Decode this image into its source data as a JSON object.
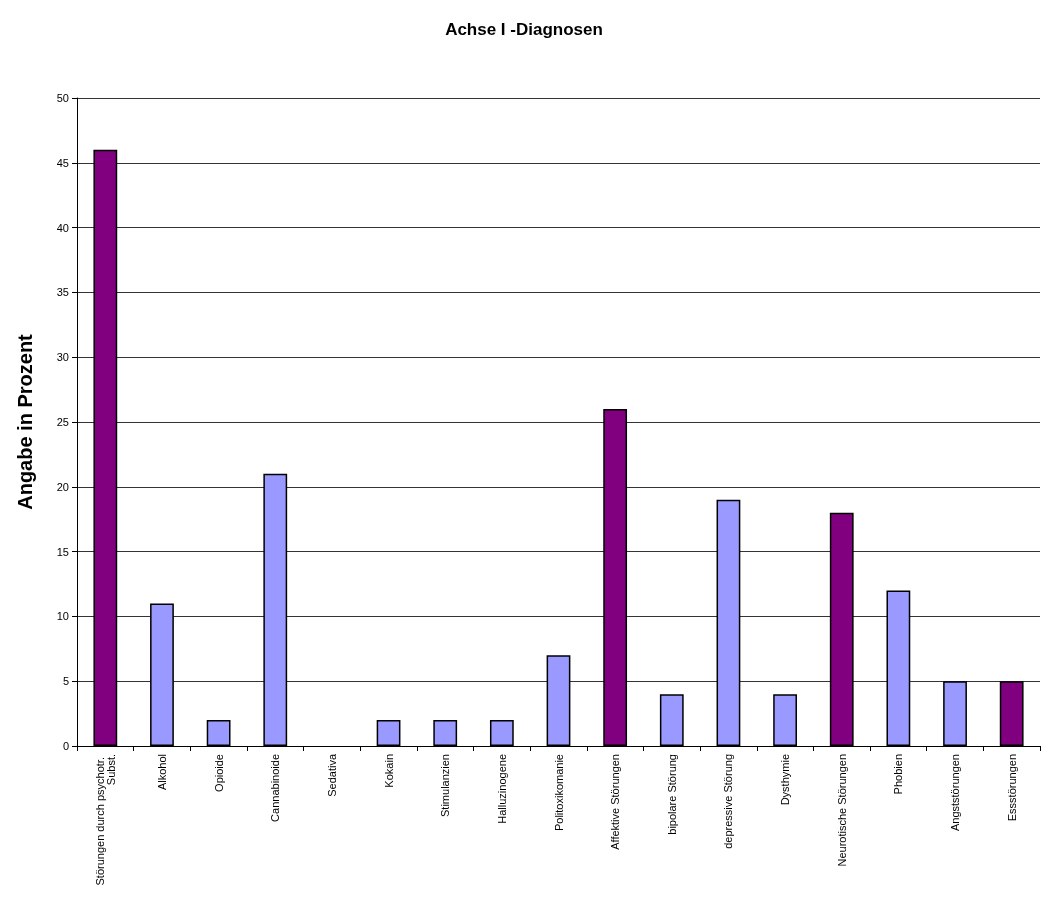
{
  "chart_data": {
    "type": "bar",
    "title": "Achse I -Diagnosen",
    "ylabel": "Angabe in Prozent",
    "categories": [
      "Störungen durch psychotr. Subst.",
      "Alkohol",
      "Opioide",
      "Cannabinoide",
      "Sedativa",
      "Kokain",
      "Stimulanzien",
      "Halluzinogene",
      "Politoxikomanie",
      "Affektive Störungen",
      "bipolare Störung",
      "depressive Störung",
      "Dysthymie",
      "Neurotische Störungen",
      "Phobien",
      "Angststörungen",
      "Essstörungen"
    ],
    "values": [
      46,
      11,
      2,
      21,
      0,
      2,
      2,
      2,
      7,
      26,
      4,
      19,
      4,
      18,
      12,
      5,
      5
    ],
    "colors": [
      "#800080",
      "#9999ff",
      "#9999ff",
      "#9999ff",
      "#9999ff",
      "#9999ff",
      "#9999ff",
      "#9999ff",
      "#9999ff",
      "#800080",
      "#9999ff",
      "#9999ff",
      "#9999ff",
      "#800080",
      "#9999ff",
      "#9999ff",
      "#800080"
    ],
    "ylim": [
      0,
      50
    ],
    "yticks": [
      0,
      5,
      10,
      15,
      20,
      25,
      30,
      35,
      40,
      45,
      50
    ],
    "grid": "y"
  }
}
